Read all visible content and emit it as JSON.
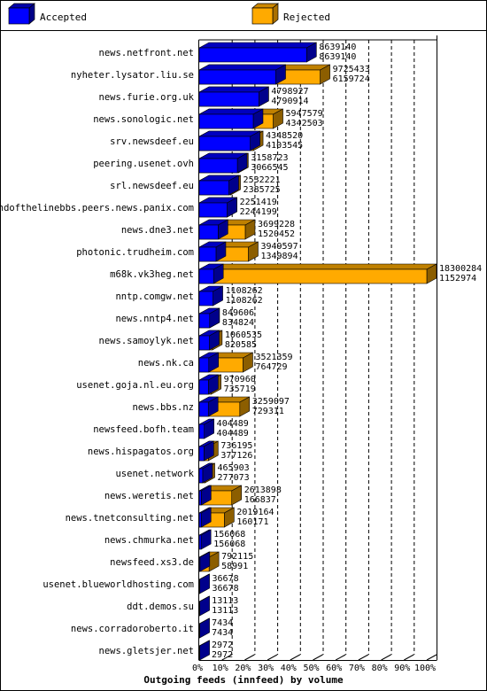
{
  "colors": {
    "accepted": "#0000ff",
    "rejected": "#ffaa00",
    "frame": "#000000",
    "background": "#ffffff"
  },
  "legend": {
    "accepted_label": "Accepted",
    "rejected_label": "Rejected"
  },
  "chart_data": {
    "type": "bar",
    "orientation": "horizontal",
    "title": "",
    "xlabel": "Outgoing feeds (innfeed) by volume",
    "ylabel": "",
    "xlim": [
      0,
      100
    ],
    "x_ticks": [
      "0%",
      "10%",
      "20%",
      "30%",
      "40%",
      "50%",
      "60%",
      "70%",
      "80%",
      "90%",
      "100%"
    ],
    "grid": true,
    "legend_position": "top",
    "series": [
      {
        "name": "Accepted",
        "color": "#0000ff"
      },
      {
        "name": "Rejected",
        "color": "#ffaa00"
      }
    ],
    "categories": [
      "news.netfront.net",
      "nyheter.lysator.liu.se",
      "news.furie.org.uk",
      "news.sonologic.net",
      "srv.newsdeef.eu",
      "peering.usenet.ovh",
      "srl.newsdeef.eu",
      "endofthelinebbs.peers.news.panix.com",
      "news.dne3.net",
      "photonic.trudheim.com",
      "m68k.vk3heg.net",
      "nntp.comgw.net",
      "news.nntp4.net",
      "news.samoylyk.net",
      "news.nk.ca",
      "usenet.goja.nl.eu.org",
      "news.bbs.nz",
      "newsfeed.bofh.team",
      "news.hispagatos.org",
      "usenet.network",
      "news.weretis.net",
      "news.tnetconsulting.net",
      "news.chmurka.net",
      "newsfeed.xs3.de",
      "usenet.blueworldhosting.com",
      "ddt.demos.su",
      "news.corradoroberto.it",
      "news.gletsjer.net"
    ],
    "offered_values": [
      8639140,
      9725433,
      4798927,
      5947579,
      4348520,
      3158723,
      2532221,
      2251419,
      3699228,
      3949597,
      18300284,
      1108262,
      849606,
      1060535,
      3521359,
      970960,
      3259097,
      404489,
      736195,
      465903,
      2613898,
      2019164,
      156068,
      792115,
      36678,
      13113,
      7434,
      2972
    ],
    "accepted_values": [
      8639140,
      6159724,
      4790914,
      4342503,
      4103545,
      3066545,
      2385725,
      2244199,
      1520452,
      1349894,
      1152974,
      1108262,
      834824,
      820585,
      764729,
      735719,
      729311,
      404489,
      377126,
      277073,
      166837,
      160171,
      156068,
      58991,
      36678,
      13113,
      7434,
      2972
    ]
  }
}
